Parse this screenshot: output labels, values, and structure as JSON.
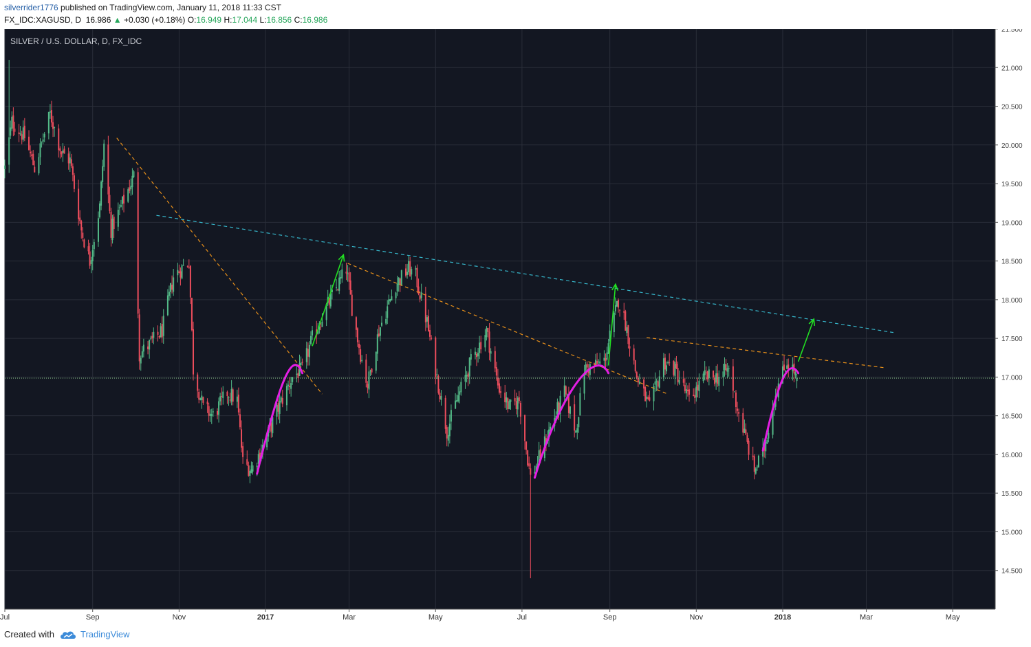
{
  "header": {
    "author": "silverrider1776",
    "published": "published on TradingView.com, January 11, 2018 11:33 CST"
  },
  "ticker": {
    "symbol": "FX_IDC:XAGUSD, D",
    "last": "16.986",
    "change": "+0.030 (+0.18%)",
    "open_label": "O:",
    "open": "16.949",
    "high_label": "H:",
    "high": "17.044",
    "low_label": "L:",
    "low": "16.856",
    "close_label": "C:",
    "close": "16.986"
  },
  "footer": {
    "created_with": "Created with",
    "brand": "TradingView"
  },
  "colors": {
    "background": "#131722",
    "grid": "#2a2e39",
    "up_candle": "#53b987",
    "down_candle": "#eb4d5c",
    "orange_trend": "#e8901a",
    "cyan_trend": "#36b5c9",
    "magenta_arc": "#e41ee4",
    "green_arrow": "#22e022",
    "price_line": "#8fce8f",
    "price_label_bg": "#5fa964"
  },
  "chart_data": {
    "type": "candlestick",
    "title": "SILVER / U.S. DOLLAR, D, FX_IDC",
    "x_tick_labels": [
      "Jul",
      "Sep",
      "Nov",
      "2017",
      "Mar",
      "May",
      "Jul",
      "Sep",
      "Nov",
      "2018",
      "Mar",
      "May"
    ],
    "x_ticks": [
      "2016-07-01",
      "2016-09-01",
      "2016-11-01",
      "2017-01-01",
      "2017-03-01",
      "2017-05-01",
      "2017-07-01",
      "2017-09-01",
      "2017-11-01",
      "2018-01-01",
      "2018-03-01",
      "2018-05-01"
    ],
    "y_tick_labels": [
      "14.500",
      "15.000",
      "15.500",
      "16.000",
      "16.500",
      "17.000",
      "17.500",
      "18.000",
      "18.500",
      "19.000",
      "19.500",
      "20.000",
      "20.500",
      "21.000",
      "21.500"
    ],
    "y_ticks": [
      14.5,
      15.0,
      15.5,
      16.0,
      16.5,
      17.0,
      17.5,
      18.0,
      18.5,
      19.0,
      19.5,
      20.0,
      20.5,
      21.0,
      21.5
    ],
    "ylim": [
      14.0,
      21.5
    ],
    "xlim": [
      "2016-07-01",
      "2018-05-31"
    ],
    "current_price": 16.986,
    "current_price_label": "16.986",
    "grid": true,
    "anchors": [
      [
        "2016-07-01",
        19.7
      ],
      [
        "2016-07-06",
        20.3
      ],
      [
        "2016-07-15",
        20.1
      ],
      [
        "2016-07-22",
        19.7
      ],
      [
        "2016-08-02",
        20.4
      ],
      [
        "2016-08-10",
        19.9
      ],
      [
        "2016-08-16",
        19.8
      ],
      [
        "2016-08-24",
        18.9
      ],
      [
        "2016-08-30",
        18.5
      ],
      [
        "2016-09-06",
        19.2
      ],
      [
        "2016-09-09",
        20.0
      ],
      [
        "2016-09-14",
        18.9
      ],
      [
        "2016-09-21",
        19.2
      ],
      [
        "2016-09-30",
        19.6
      ],
      [
        "2016-10-04",
        17.3
      ],
      [
        "2016-10-10",
        17.4
      ],
      [
        "2016-10-20",
        17.6
      ],
      [
        "2016-10-28",
        18.3
      ],
      [
        "2016-11-08",
        18.5
      ],
      [
        "2016-11-11",
        17.1
      ],
      [
        "2016-11-18",
        16.6
      ],
      [
        "2016-11-25",
        16.5
      ],
      [
        "2016-12-05",
        16.8
      ],
      [
        "2016-12-12",
        16.7
      ],
      [
        "2016-12-16",
        15.9
      ],
      [
        "2016-12-22",
        15.8
      ],
      [
        "2016-12-30",
        16.1
      ],
      [
        "2017-01-10",
        16.6
      ],
      [
        "2017-01-20",
        17.0
      ],
      [
        "2017-01-27",
        17.1
      ],
      [
        "2017-02-03",
        17.5
      ],
      [
        "2017-02-13",
        17.9
      ],
      [
        "2017-02-27",
        18.4
      ],
      [
        "2017-03-03",
        17.9
      ],
      [
        "2017-03-09",
        17.3
      ],
      [
        "2017-03-14",
        16.9
      ],
      [
        "2017-03-22",
        17.6
      ],
      [
        "2017-04-03",
        18.2
      ],
      [
        "2017-04-12",
        18.4
      ],
      [
        "2017-04-17",
        18.3
      ],
      [
        "2017-04-25",
        17.7
      ],
      [
        "2017-05-03",
        16.9
      ],
      [
        "2017-05-09",
        16.3
      ],
      [
        "2017-05-16",
        16.7
      ],
      [
        "2017-05-26",
        17.2
      ],
      [
        "2017-06-06",
        17.6
      ],
      [
        "2017-06-14",
        16.9
      ],
      [
        "2017-06-22",
        16.6
      ],
      [
        "2017-06-29",
        16.7
      ],
      [
        "2017-07-07",
        15.7
      ],
      [
        "2017-07-12",
        15.9
      ],
      [
        "2017-07-20",
        16.3
      ],
      [
        "2017-07-31",
        16.8
      ],
      [
        "2017-08-08",
        16.3
      ],
      [
        "2017-08-14",
        17.1
      ],
      [
        "2017-08-28",
        17.2
      ],
      [
        "2017-09-07",
        18.0
      ],
      [
        "2017-09-12",
        17.7
      ],
      [
        "2017-09-20",
        17.0
      ],
      [
        "2017-09-29",
        16.6
      ],
      [
        "2017-10-09",
        17.2
      ],
      [
        "2017-10-17",
        17.1
      ],
      [
        "2017-10-27",
        16.7
      ],
      [
        "2017-11-07",
        17.0
      ],
      [
        "2017-11-16",
        17.0
      ],
      [
        "2017-11-24",
        17.1
      ],
      [
        "2017-11-30",
        16.6
      ],
      [
        "2017-12-06",
        16.2
      ],
      [
        "2017-12-12",
        15.8
      ],
      [
        "2017-12-18",
        16.0
      ],
      [
        "2017-12-27",
        16.8
      ],
      [
        "2018-01-04",
        17.2
      ],
      [
        "2018-01-08",
        17.1
      ],
      [
        "2018-01-11",
        16.99
      ]
    ],
    "annotations": {
      "cyan_trendline": [
        [
          "2016-10-16",
          19.09
        ],
        [
          "2018-03-22",
          17.57
        ]
      ],
      "orange_trendlines": [
        [
          [
            "2016-09-18",
            20.09
          ],
          [
            "2017-02-10",
            16.78
          ]
        ],
        [
          [
            "2017-02-28",
            18.47
          ],
          [
            "2017-10-12",
            16.78
          ]
        ],
        [
          [
            "2017-09-27",
            17.51
          ],
          [
            "2018-03-14",
            17.12
          ]
        ]
      ],
      "magenta_arcs": [
        [
          [
            "2016-12-26",
            15.75
          ],
          [
            "2017-01-11",
            16.95
          ],
          [
            "2017-01-20",
            17.38
          ],
          [
            "2017-01-27",
            17.05
          ]
        ],
        [
          [
            "2017-07-10",
            15.7
          ],
          [
            "2017-07-28",
            16.8
          ],
          [
            "2017-08-22",
            17.4
          ],
          [
            "2017-08-31",
            17.05
          ]
        ],
        [
          [
            "2017-12-18",
            16.05
          ],
          [
            "2017-12-27",
            16.8
          ],
          [
            "2018-01-04",
            17.3
          ],
          [
            "2018-01-12",
            17.05
          ]
        ]
      ],
      "green_arrows": [
        [
          [
            "2017-02-03",
            17.4
          ],
          [
            "2017-02-25",
            18.58
          ]
        ],
        [
          [
            "2017-08-31",
            17.15
          ],
          [
            "2017-09-05",
            18.2
          ]
        ],
        [
          [
            "2018-01-12",
            17.2
          ],
          [
            "2018-01-23",
            17.75
          ]
        ]
      ]
    }
  }
}
